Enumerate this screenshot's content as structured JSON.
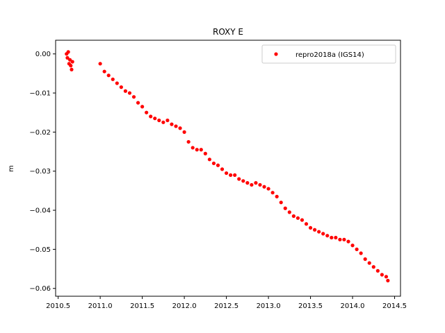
{
  "chart_data": {
    "type": "scatter",
    "title": "ROXY E",
    "xlabel": "",
    "ylabel": "m",
    "xlim": [
      2010.47,
      2014.57
    ],
    "ylim": [
      -0.062,
      0.0035
    ],
    "xticks": [
      2010.5,
      2011.0,
      2011.5,
      2012.0,
      2012.5,
      2013.0,
      2013.5,
      2014.0,
      2014.5
    ],
    "xtick_labels": [
      "2010.5",
      "2011.0",
      "2011.5",
      "2012.0",
      "2012.5",
      "2013.0",
      "2013.5",
      "2014.0",
      "2014.5"
    ],
    "yticks": [
      0.0,
      -0.01,
      -0.02,
      -0.03,
      -0.04,
      -0.05,
      -0.06
    ],
    "ytick_labels": [
      "0.00",
      "−0.01",
      "−0.02",
      "−0.03",
      "−0.04",
      "−0.05",
      "−0.06"
    ],
    "legend_position": "top-right",
    "grid": false,
    "series": [
      {
        "name": "repro2018a (IGS14)",
        "color": "#ff0000",
        "marker": "circle",
        "points": [
          [
            2010.6,
            0.0
          ],
          [
            2010.61,
            -0.001
          ],
          [
            2010.62,
            0.0005
          ],
          [
            2010.63,
            -0.0025
          ],
          [
            2010.64,
            -0.0015
          ],
          [
            2010.65,
            -0.003
          ],
          [
            2010.66,
            -0.004
          ],
          [
            2010.67,
            -0.002
          ],
          [
            2011.0,
            -0.0025
          ],
          [
            2011.05,
            -0.0045
          ],
          [
            2011.1,
            -0.0055
          ],
          [
            2011.15,
            -0.0065
          ],
          [
            2011.2,
            -0.0075
          ],
          [
            2011.25,
            -0.0085
          ],
          [
            2011.3,
            -0.0095
          ],
          [
            2011.35,
            -0.01
          ],
          [
            2011.4,
            -0.011
          ],
          [
            2011.45,
            -0.0125
          ],
          [
            2011.5,
            -0.0135
          ],
          [
            2011.55,
            -0.015
          ],
          [
            2011.6,
            -0.016
          ],
          [
            2011.65,
            -0.0165
          ],
          [
            2011.7,
            -0.017
          ],
          [
            2011.75,
            -0.0175
          ],
          [
            2011.8,
            -0.017
          ],
          [
            2011.85,
            -0.018
          ],
          [
            2011.9,
            -0.0185
          ],
          [
            2011.95,
            -0.019
          ],
          [
            2012.0,
            -0.02
          ],
          [
            2012.05,
            -0.0225
          ],
          [
            2012.1,
            -0.024
          ],
          [
            2012.15,
            -0.0245
          ],
          [
            2012.2,
            -0.0245
          ],
          [
            2012.25,
            -0.0255
          ],
          [
            2012.3,
            -0.027
          ],
          [
            2012.35,
            -0.028
          ],
          [
            2012.4,
            -0.0285
          ],
          [
            2012.45,
            -0.0295
          ],
          [
            2012.5,
            -0.0305
          ],
          [
            2012.55,
            -0.031
          ],
          [
            2012.6,
            -0.031
          ],
          [
            2012.65,
            -0.032
          ],
          [
            2012.7,
            -0.0325
          ],
          [
            2012.75,
            -0.033
          ],
          [
            2012.8,
            -0.0335
          ],
          [
            2012.85,
            -0.033
          ],
          [
            2012.9,
            -0.0335
          ],
          [
            2012.95,
            -0.034
          ],
          [
            2013.0,
            -0.0345
          ],
          [
            2013.05,
            -0.0355
          ],
          [
            2013.1,
            -0.0365
          ],
          [
            2013.15,
            -0.038
          ],
          [
            2013.2,
            -0.0395
          ],
          [
            2013.25,
            -0.0405
          ],
          [
            2013.3,
            -0.0415
          ],
          [
            2013.35,
            -0.042
          ],
          [
            2013.4,
            -0.0425
          ],
          [
            2013.45,
            -0.0435
          ],
          [
            2013.5,
            -0.0445
          ],
          [
            2013.55,
            -0.045
          ],
          [
            2013.6,
            -0.0455
          ],
          [
            2013.65,
            -0.046
          ],
          [
            2013.7,
            -0.0465
          ],
          [
            2013.75,
            -0.047
          ],
          [
            2013.8,
            -0.047
          ],
          [
            2013.85,
            -0.0475
          ],
          [
            2013.9,
            -0.0475
          ],
          [
            2013.95,
            -0.048
          ],
          [
            2014.0,
            -0.049
          ],
          [
            2014.05,
            -0.05
          ],
          [
            2014.1,
            -0.051
          ],
          [
            2014.15,
            -0.0525
          ],
          [
            2014.2,
            -0.0535
          ],
          [
            2014.25,
            -0.0545
          ],
          [
            2014.3,
            -0.0555
          ],
          [
            2014.35,
            -0.0565
          ],
          [
            2014.4,
            -0.057
          ],
          [
            2014.42,
            -0.058
          ]
        ]
      }
    ]
  }
}
